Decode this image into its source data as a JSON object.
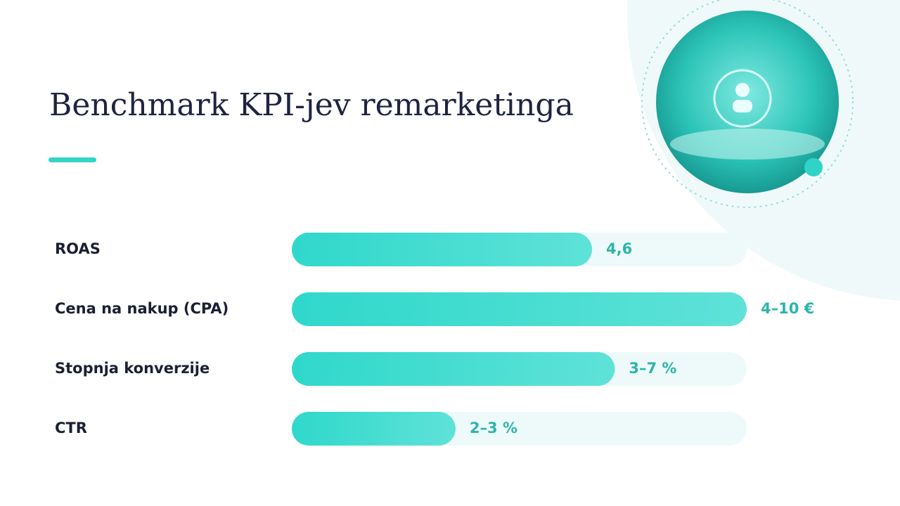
{
  "title": "Benchmark KPI-jev remarketinga",
  "xlim": [
    0,
    100
  ],
  "rows": [
    {
      "label": "ROAS",
      "value": "4,6",
      "bar": 66
    },
    {
      "label": "Cena na nakup (CPA)",
      "value": "4–10 €",
      "bar": 100
    },
    {
      "label": "Stopnja konverzije",
      "value": "3–7 %",
      "bar": 71
    },
    {
      "label": "CTR",
      "value": "2–3 %",
      "bar": 36
    }
  ]
}
